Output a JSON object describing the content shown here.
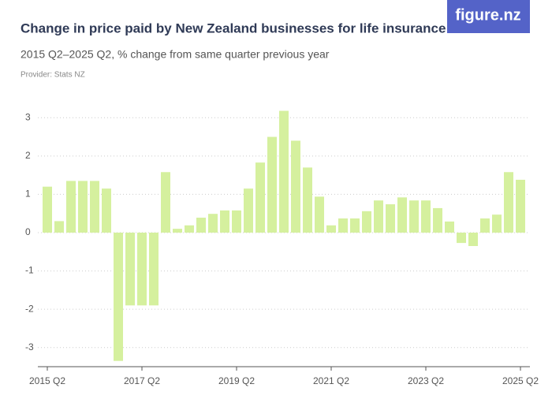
{
  "logo": "figure.nz",
  "chart_data": {
    "type": "bar",
    "title": "Change in price paid by New Zealand businesses for life insurance",
    "subtitle": "2015 Q2–2025 Q2, % change from same quarter previous year",
    "provider": "Provider: Stats NZ",
    "categories": [
      "2015 Q2",
      null,
      null,
      null,
      null,
      null,
      null,
      null,
      "2017 Q2",
      null,
      null,
      null,
      null,
      null,
      null,
      null,
      "2019 Q2",
      null,
      null,
      null,
      null,
      null,
      null,
      null,
      "2021 Q2",
      null,
      null,
      null,
      null,
      null,
      null,
      null,
      "2023 Q2",
      null,
      null,
      null,
      null,
      null,
      null,
      null,
      "2025 Q2"
    ],
    "values": [
      1.2,
      0.3,
      1.35,
      1.35,
      1.35,
      1.15,
      -3.35,
      -1.9,
      -1.9,
      -1.9,
      1.58,
      0.1,
      0.19,
      0.39,
      0.49,
      0.58,
      0.58,
      1.15,
      1.83,
      2.5,
      3.18,
      2.4,
      1.7,
      0.94,
      0.19,
      0.37,
      0.37,
      0.56,
      0.84,
      0.74,
      0.92,
      0.84,
      0.84,
      0.64,
      0.29,
      -0.27,
      -0.35,
      0.37,
      0.47,
      1.58,
      1.38
    ],
    "color": "#d5f09e",
    "ylim": [
      -3.5,
      3.5
    ],
    "yticks": [
      -3,
      -2,
      -1,
      0,
      1,
      2,
      3
    ],
    "grid": true
  }
}
